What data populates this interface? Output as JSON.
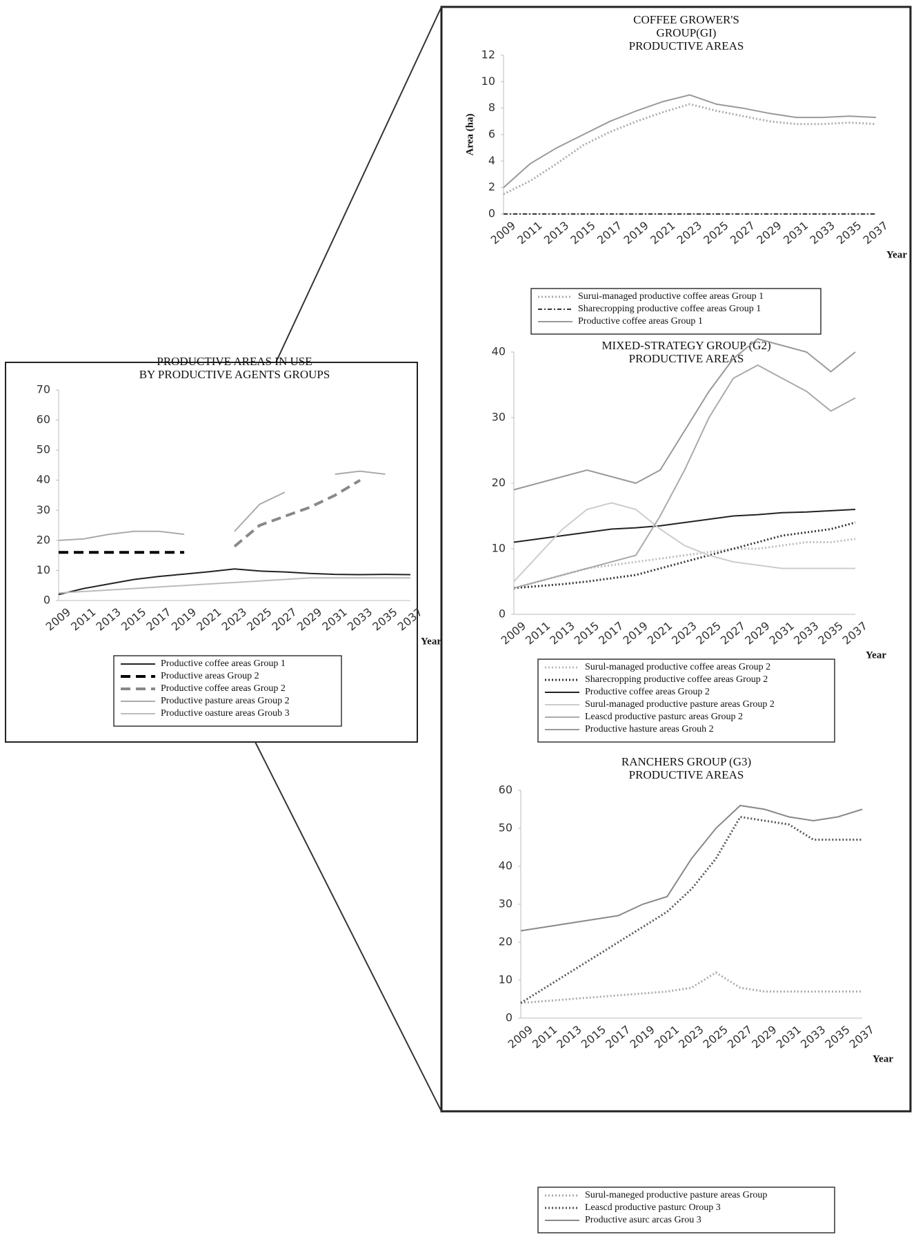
{
  "chart_data": [
    {
      "type": "line",
      "title": [
        "PRODUCTIVE AREAS IN USE",
        "BY PRODUCTIVE AGENTS GROUPS"
      ],
      "x_label": "Year",
      "categories": [
        "2009",
        "2011",
        "2013",
        "2015",
        "2017",
        "2019",
        "2021",
        "2023",
        "2025",
        "2027",
        "2029",
        "2031",
        "2033",
        "2035",
        "2037"
      ],
      "ylim": [
        0,
        70
      ],
      "yticks": [
        0,
        10,
        20,
        30,
        40,
        50,
        60,
        70
      ],
      "series": [
        {
          "name": "Productive coffee areas Group 1",
          "color": "#222222",
          "style": "solid",
          "values": [
            2,
            4,
            5.5,
            7,
            8,
            8.8,
            9.6,
            10.5,
            9.8,
            9.5,
            9,
            8.7,
            8.6,
            8.7,
            8.6
          ]
        },
        {
          "name": "Productive areas Group 2",
          "color": "#000000",
          "style": "dashed",
          "values": [
            16,
            16,
            16,
            16,
            16,
            16,
            null,
            null,
            null,
            null,
            null,
            null,
            null,
            null,
            null
          ]
        },
        {
          "name": "Productive coffee areas Group 2",
          "color": "#888888",
          "style": "dashed",
          "values": [
            null,
            null,
            null,
            null,
            null,
            null,
            null,
            18,
            25,
            28,
            31,
            35,
            40,
            null,
            null
          ]
        },
        {
          "name": "Productive pasture areas Group 2",
          "color": "#aaaaaa",
          "style": "solid",
          "values": [
            20,
            20.5,
            22,
            23,
            23,
            22,
            null,
            23,
            32,
            36,
            null,
            42,
            43,
            42,
            null
          ]
        },
        {
          "name": "Productive oasture areas Groub 3",
          "color": "#bbbbbb",
          "style": "solid",
          "values": [
            2.5,
            3,
            3.5,
            4,
            4.5,
            5,
            5.5,
            6,
            6.5,
            7,
            7.5,
            7.5,
            7.5,
            7.5,
            7.5
          ]
        }
      ]
    },
    {
      "type": "line",
      "title": [
        "COFFEE GROWER'S",
        "GROUP(GI)",
        "PRODUCTIVE AREAS"
      ],
      "y_label": "Area (ha)",
      "x_label": "Year",
      "categories": [
        "2009",
        "2011",
        "2013",
        "2015",
        "2017",
        "2019",
        "2021",
        "2023",
        "2025",
        "2027",
        "2029",
        "2031",
        "2033",
        "2035",
        "2037"
      ],
      "ylim": [
        0,
        12
      ],
      "yticks": [
        0,
        2,
        4,
        6,
        8,
        10,
        12
      ],
      "series": [
        {
          "name": "Surui-managed productive coffee areas Group 1",
          "color": "#aaaaaa",
          "style": "dotted",
          "values": [
            1.5,
            2.5,
            3.8,
            5.2,
            6.2,
            7,
            7.7,
            8.3,
            7.8,
            7.4,
            7,
            6.8,
            6.8,
            6.9,
            6.8
          ]
        },
        {
          "name": "Sharecropping productive coffee areas Group 1",
          "color": "#333333",
          "style": "dashdot",
          "values": [
            0,
            0,
            0,
            0,
            0,
            0,
            0,
            0,
            0,
            0,
            0,
            0,
            0,
            0,
            0
          ]
        },
        {
          "name": "Productive coffee areas Group 1",
          "color": "#999999",
          "style": "solid",
          "values": [
            2,
            3.8,
            5,
            6,
            7,
            7.8,
            8.5,
            9,
            8.3,
            8,
            7.6,
            7.3,
            7.3,
            7.4,
            7.3
          ]
        }
      ]
    },
    {
      "type": "line",
      "title": [
        "MIXED-STRATEGY GROUP (G2)",
        "PRODUCTIVE AREAS"
      ],
      "x_label": "Year",
      "categories": [
        "2009",
        "2011",
        "2013",
        "2015",
        "2017",
        "2019",
        "2021",
        "2023",
        "2025",
        "2027",
        "2029",
        "2031",
        "2033",
        "2035",
        "2037"
      ],
      "ylim": [
        0,
        40
      ],
      "yticks": [
        0,
        10,
        20,
        30,
        40
      ],
      "series": [
        {
          "name": "Surul-managed productive coffee areas Group 2",
          "color": "#bbbbbb",
          "style": "dotted",
          "values": [
            4,
            5,
            6,
            7,
            7.5,
            8,
            8.5,
            9,
            9.5,
            10,
            10,
            10.5,
            11,
            11,
            11.5
          ]
        },
        {
          "name": "Sharecropping productive coffee areas Group 2",
          "color": "#333333",
          "style": "dotted",
          "values": [
            4,
            4.3,
            4.6,
            5,
            5.5,
            6,
            7,
            8,
            9,
            10,
            11,
            12,
            12.5,
            13,
            14
          ]
        },
        {
          "name": "Productive coffee areas Group 2",
          "color": "#222222",
          "style": "solid",
          "values": [
            11,
            11.5,
            12,
            12.5,
            13,
            13.2,
            13.5,
            14,
            14.5,
            15,
            15.2,
            15.5,
            15.6,
            15.8,
            16
          ]
        },
        {
          "name": "Surul-managed productive pasture areas Group 2",
          "color": "#cccccc",
          "style": "solid",
          "values": [
            5,
            9,
            13,
            16,
            17,
            16,
            13,
            10.5,
            9,
            8,
            7.5,
            7,
            7,
            7,
            7
          ]
        },
        {
          "name": "Leascd productive pasturc areas Group 2",
          "color": "#aaaaaa",
          "style": "solid",
          "values": [
            4,
            5,
            6,
            7,
            8,
            9,
            15,
            22,
            30,
            36,
            38,
            36,
            34,
            31,
            33
          ]
        },
        {
          "name": "Productive hasture areas Grouh 2",
          "color": "#999999",
          "style": "solid",
          "values": [
            19,
            20,
            21,
            22,
            21,
            20,
            22,
            28,
            34,
            39,
            42,
            41,
            40,
            37,
            40
          ]
        }
      ]
    },
    {
      "type": "line",
      "title": [
        "RANCHERS GROUP (G3)",
        "PRODUCTIVE AREAS"
      ],
      "x_label": "Year",
      "categories": [
        "2009",
        "2011",
        "2013",
        "2015",
        "2017",
        "2019",
        "2021",
        "2023",
        "2025",
        "2027",
        "2029",
        "2031",
        "2033",
        "2035",
        "2037"
      ],
      "ylim": [
        0,
        60
      ],
      "yticks": [
        0,
        10,
        20,
        30,
        40,
        50,
        60
      ],
      "series": [
        {
          "name": "Surul-maneged productive pasture areas Group",
          "color": "#aaaaaa",
          "style": "dotted",
          "values": [
            4,
            4.5,
            5,
            5.5,
            6,
            6.5,
            7,
            8,
            12,
            8,
            7,
            7,
            7,
            7,
            7
          ]
        },
        {
          "name": "Leascd productive pasturc Oroup 3",
          "color": "#555555",
          "style": "dotted",
          "values": [
            4,
            8,
            12,
            16,
            20,
            24,
            28,
            34,
            42,
            53,
            52,
            51,
            47,
            47,
            47
          ]
        },
        {
          "name": "Productive asurc arcas Grou 3",
          "color": "#888888",
          "style": "solid",
          "values": [
            23,
            24,
            25,
            26,
            27,
            30,
            32,
            42,
            50,
            56,
            55,
            53,
            52,
            53,
            55
          ]
        }
      ]
    }
  ]
}
